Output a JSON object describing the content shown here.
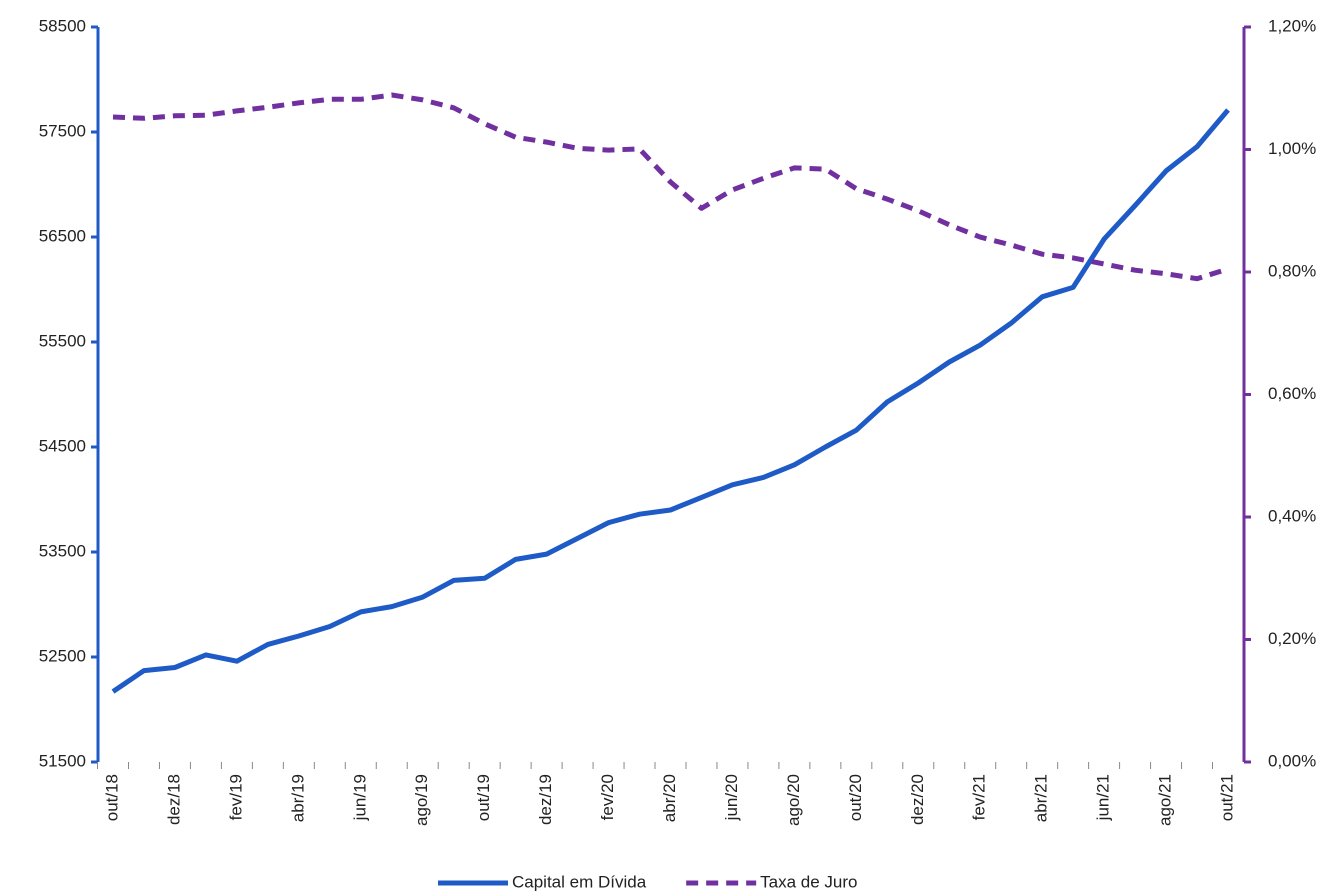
{
  "chart_data": {
    "type": "line",
    "categories": [
      "out/18",
      null,
      "dez/18",
      null,
      "fev/19",
      null,
      "abr/19",
      null,
      "jun/19",
      null,
      "ago/19",
      null,
      "out/19",
      null,
      "dez/19",
      null,
      "fev/20",
      null,
      "abr/20",
      null,
      "jun/20",
      null,
      "ago/20",
      null,
      "out/20",
      null,
      "dez/20",
      null,
      "fev/21",
      null,
      "abr/21",
      null,
      "jun/21",
      null,
      "ago/21",
      null,
      "out/21"
    ],
    "series": [
      {
        "name": "Capital em Dívida",
        "color": "#1f5bc6",
        "style": "solid",
        "axis": "y",
        "values": [
          52170,
          52370,
          52400,
          52520,
          52460,
          52620,
          52700,
          52790,
          52930,
          52980,
          53070,
          53230,
          53250,
          53430,
          53480,
          53630,
          53780,
          53860,
          53900,
          54020,
          54140,
          54210,
          54330,
          54500,
          54660,
          54930,
          55110,
          55310,
          55470,
          55680,
          55930,
          56020,
          56480,
          56800,
          57130,
          57360,
          57710
        ]
      },
      {
        "name": "Taxa de Juro",
        "color": "#7030a0",
        "style": "dashed",
        "axis": "y2",
        "values": [
          1.053,
          1.051,
          1.055,
          1.056,
          1.063,
          1.069,
          1.076,
          1.082,
          1.082,
          1.089,
          1.081,
          1.068,
          1.042,
          1.02,
          1.012,
          1.002,
          0.999,
          1.001,
          0.947,
          0.904,
          0.934,
          0.953,
          0.97,
          0.968,
          0.936,
          0.919,
          0.9,
          0.877,
          0.857,
          0.844,
          0.829,
          0.823,
          0.813,
          0.803,
          0.797,
          0.789,
          0.805
        ]
      }
    ],
    "ylim": [
      51500,
      58500
    ],
    "yticks": [
      51500,
      52500,
      53500,
      54500,
      55500,
      56500,
      57500,
      58500
    ],
    "y2lim": [
      0,
      1.2
    ],
    "y2ticks": [
      {
        "value": 0,
        "label": "0,00%"
      },
      {
        "value": 0.2,
        "label": "0,20%"
      },
      {
        "value": 0.4,
        "label": "0,40%"
      },
      {
        "value": 0.6,
        "label": "0,60%"
      },
      {
        "value": 0.8,
        "label": "0,80%"
      },
      {
        "value": 1.0,
        "label": "1,00%"
      },
      {
        "value": 1.2,
        "label": "1,20%"
      }
    ],
    "legend": "bottom"
  }
}
